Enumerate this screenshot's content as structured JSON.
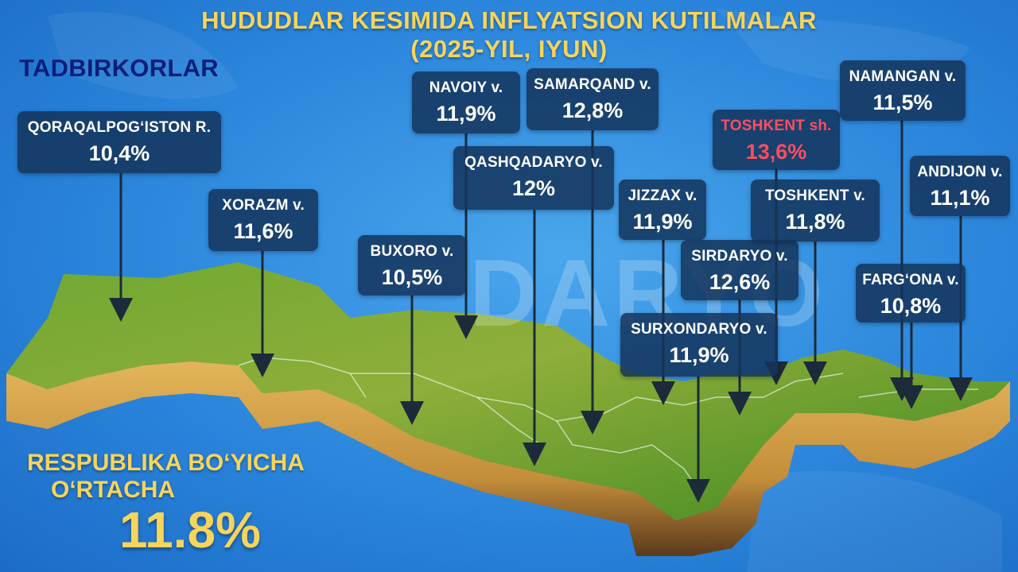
{
  "title": {
    "line1": "HUDUDLAR KESIMIDA INFLYATSION KUTILMALAR",
    "line2": "(2025-YIL, IYUN)"
  },
  "category": "TADBIRKORLAR",
  "average": {
    "label_line1": "RESPUBLIKA BO‘YICHA",
    "label_line2": "O‘RTACHA",
    "value": "11.8%"
  },
  "watermark": "DARYO",
  "colors": {
    "title": "#f7d45a",
    "category": "#0b1e7a",
    "label_box": "#14345c",
    "highlight": "#ff4d5e",
    "sea": "#2b86dc",
    "land_top": "#5a9a28",
    "land_side": "#d9a94a"
  },
  "regions": [
    {
      "id": "qoraqalpogiston",
      "name": "QORAQALPOG‘ISTON R.",
      "value": "10,4%",
      "highlight": false
    },
    {
      "id": "xorazm",
      "name": "XORAZM v.",
      "value": "11,6%",
      "highlight": false
    },
    {
      "id": "navoiy",
      "name": "NAVOIY v.",
      "value": "11,9%",
      "highlight": false
    },
    {
      "id": "samarqand",
      "name": "SAMARQAND v.",
      "value": "12,8%",
      "highlight": false
    },
    {
      "id": "qashqadaryo",
      "name": "QASHQADARYO v.",
      "value": "12%",
      "highlight": false
    },
    {
      "id": "buxoro",
      "name": "BUXORO v.",
      "value": "10,5%",
      "highlight": false
    },
    {
      "id": "jizzax",
      "name": "JIZZAX v.",
      "value": "11,9%",
      "highlight": false
    },
    {
      "id": "sirdaryo",
      "name": "SIRDARYO v.",
      "value": "12,6%",
      "highlight": false
    },
    {
      "id": "surxondaryo",
      "name": "SURXONDARYO v.",
      "value": "11,9%",
      "highlight": false
    },
    {
      "id": "toshkent-sh",
      "name": "TOSHKENT sh.",
      "value": "13,6%",
      "highlight": true
    },
    {
      "id": "toshkent-v",
      "name": "TOSHKENT v.",
      "value": "11,8%",
      "highlight": false
    },
    {
      "id": "namangan",
      "name": "NAMANGAN v.",
      "value": "11,5%",
      "highlight": false
    },
    {
      "id": "andijon",
      "name": "ANDIJON v.",
      "value": "11,1%",
      "highlight": false
    },
    {
      "id": "fargona",
      "name": "FARG‘ONA v.",
      "value": "10,8%",
      "highlight": false
    }
  ]
}
